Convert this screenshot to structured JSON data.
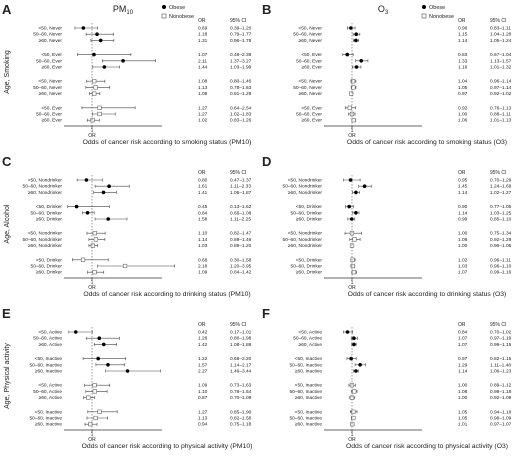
{
  "legend": {
    "obese": "Obese",
    "nonobese": "Nonobese"
  },
  "columns": {
    "or": "OR",
    "ci": "95% CI"
  },
  "chart_data": [
    {
      "panel": "A",
      "type": "forest",
      "title": "PM10",
      "title_sub": "10",
      "ylabel": "Age, Smoking",
      "xaxis_label": "OR",
      "xlabel": "Odds of cancer risk according to smoking status (PM10)",
      "xlim": [
        0,
        3.5
      ],
      "ref_line": 1,
      "show_legend": true,
      "groups": [
        {
          "rows": [
            {
              "label": "<50, Never",
              "or": "0.69",
              "ci": "0.39–1.20",
              "obese": true
            },
            {
              "label": "50–60, Never",
              "or": "1.18",
              "ci": "0.79–1.77",
              "obese": true
            },
            {
              "label": "≥60, Never",
              "or": "1.31",
              "ci": "0.96–1.78",
              "obese": true
            }
          ]
        },
        {
          "rows": [
            {
              "label": "<50, Ever",
              "or": "1.07",
              "ci": "0.48–2.39",
              "obese": true
            },
            {
              "label": "50–60, Ever",
              "or": "2.11",
              "ci": "1.37–3.27",
              "obese": true
            },
            {
              "label": "≥60, Ever",
              "or": "1.44",
              "ci": "1.03–1.99",
              "obese": true
            }
          ]
        },
        {
          "rows": [
            {
              "label": "<50, Never",
              "or": "1.08",
              "ci": "0.80–1.46",
              "obese": false
            },
            {
              "label": "50–60, Never",
              "or": "1.13",
              "ci": "0.78–1.63",
              "obese": false
            },
            {
              "label": "≥60, Never",
              "or": "1.08",
              "ci": "0.91–1.28",
              "obese": false
            }
          ]
        },
        {
          "rows": [
            {
              "label": "<50, Ever",
              "or": "1.27",
              "ci": "0.64–2.54",
              "obese": false
            },
            {
              "label": "50–60, Ever",
              "or": "1.27",
              "ci": "1.02–1.83",
              "obese": false
            },
            {
              "label": "≥60, Ever",
              "or": "1.02",
              "ci": "0.83–1.26",
              "obese": false
            }
          ]
        }
      ]
    },
    {
      "panel": "B",
      "type": "forest",
      "title": "O3",
      "title_sub": "3",
      "ylabel": "",
      "xaxis_label": "OR",
      "xlabel": "Odds of cancer risk according to smoking status (O3)",
      "xlim": [
        0,
        3.5
      ],
      "ref_line": 1,
      "show_legend": true,
      "groups": [
        {
          "rows": [
            {
              "label": "<50, Never",
              "or": "0.96",
              "ci": "0.83–1.11",
              "obese": true
            },
            {
              "label": "50–60, Never",
              "or": "1.15",
              "ci": "1.04–1.28",
              "obese": true
            },
            {
              "label": "≥60, Never",
              "or": "1.14",
              "ci": "1.05–1.24",
              "obese": true
            }
          ]
        },
        {
          "rows": [
            {
              "label": "<50, Ever",
              "or": "0.83",
              "ci": "0.67–1.04",
              "obese": true
            },
            {
              "label": "50–60, Ever",
              "or": "1.33",
              "ci": "1.13–1.57",
              "obese": true
            },
            {
              "label": "≥60, Ever",
              "or": "1.16",
              "ci": "1.01–1.32",
              "obese": true
            }
          ]
        },
        {
          "rows": [
            {
              "label": "<50, Never",
              "or": "1.04",
              "ci": "0.96–1.14",
              "obese": false
            },
            {
              "label": "50–60, Never",
              "or": "1.05",
              "ci": "0.97–1.14",
              "obese": false
            },
            {
              "label": "≥60, Never",
              "or": "0.97",
              "ci": "0.92–1.02",
              "obese": false
            }
          ]
        },
        {
          "rows": [
            {
              "label": "<50, Ever",
              "or": "0.92",
              "ci": "0.76–1.13",
              "obese": false
            },
            {
              "label": "50–60, Ever",
              "or": "1.00",
              "ci": "0.88–1.11",
              "obese": false
            },
            {
              "label": "≥60, Ever",
              "or": "1.06",
              "ci": "1.01–1.13",
              "obese": false
            }
          ]
        }
      ]
    },
    {
      "panel": "C",
      "type": "forest",
      "title": "",
      "title_sub": "",
      "ylabel": "Age, Alcohol",
      "xaxis_label": "OR",
      "xlabel": "Odds of cancer risk according to drinking status (PM10)",
      "xlim": [
        0,
        3.5
      ],
      "ref_line": 1,
      "show_legend": false,
      "groups": [
        {
          "rows": [
            {
              "label": "<50, Nondrinker",
              "or": "0.80",
              "ci": "0.47–1.37",
              "obese": true
            },
            {
              "label": "50–60, Nondrinker",
              "or": "1.61",
              "ci": "1.11–2.33",
              "obese": true
            },
            {
              "label": "≥60, Nondrinker",
              "or": "1.41",
              "ci": "1.06–1.87",
              "obese": true
            }
          ]
        },
        {
          "rows": [
            {
              "label": "<50, Drinker",
              "or": "0.45",
              "ci": "0.13–1.62",
              "obese": true
            },
            {
              "label": "50–60, Drinker",
              "or": "0.84",
              "ci": "0.66–1.08",
              "obese": true
            },
            {
              "label": "≥60, Drinker",
              "or": "1.58",
              "ci": "1.11–2.25",
              "obese": true
            }
          ]
        },
        {
          "rows": [
            {
              "label": "<50, Nondrinker",
              "or": "1.10",
              "ci": "0.82–1.47",
              "obese": false
            },
            {
              "label": "50–60, Nondrinker",
              "or": "1.14",
              "ci": "0.89–1.46",
              "obese": false
            },
            {
              "label": "≥60, Nondrinker",
              "or": "1.03",
              "ci": "0.89–1.20",
              "obese": false
            }
          ]
        },
        {
          "rows": [
            {
              "label": "<50, Drinker",
              "or": "0.68",
              "ci": "0.30–1.58",
              "obese": false
            },
            {
              "label": "50–60, Drinker",
              "or": "2.18",
              "ci": "1.20–3.95",
              "obese": false
            },
            {
              "label": "≥60, Drinker",
              "or": "1.09",
              "ci": "0.84–1.42",
              "obese": false
            }
          ]
        }
      ]
    },
    {
      "panel": "D",
      "type": "forest",
      "title": "",
      "title_sub": "",
      "ylabel": "",
      "xaxis_label": "OR",
      "xlabel": "Odds of cancer risk according to drinking status (O3)",
      "xlim": [
        0,
        3.5
      ],
      "ref_line": 1,
      "show_legend": false,
      "groups": [
        {
          "rows": [
            {
              "label": "<50, Nondrinker",
              "or": "0.95",
              "ci": "0.70–1.29",
              "obese": true
            },
            {
              "label": "50–60, Nondrinker",
              "or": "1.45",
              "ci": "1.24–1.69",
              "obese": true
            },
            {
              "label": "≥60, Nondrinker",
              "or": "1.14",
              "ci": "1.02–1.27",
              "obese": true
            }
          ]
        },
        {
          "rows": [
            {
              "label": "<50, Drinker",
              "or": "0.90",
              "ci": "0.77–1.05",
              "obese": true
            },
            {
              "label": "50–60, Drinker",
              "or": "1.14",
              "ci": "1.03–1.25",
              "obese": true
            },
            {
              "label": "≥60, Drinker",
              "or": "0.99",
              "ci": "0.85–1.10",
              "obese": true
            }
          ]
        },
        {
          "rows": [
            {
              "label": "<50, Nondrinker",
              "or": "1.00",
              "ci": "0.75–1.34",
              "obese": false
            },
            {
              "label": "50–60, Nondrinker",
              "or": "1.09",
              "ci": "0.92–1.29",
              "obese": false
            },
            {
              "label": "≥60, Nondrinker",
              "or": "1.00",
              "ci": "0.96–1.05",
              "obese": false
            }
          ]
        },
        {
          "rows": [
            {
              "label": "<50, Drinker",
              "or": "1.02",
              "ci": "0.96–1.11",
              "obese": false
            },
            {
              "label": "50–60, Drinker",
              "or": "1.03",
              "ci": "0.96–1.10",
              "obese": false
            },
            {
              "label": "≥60, Drinker",
              "or": "1.07",
              "ci": "0.99–1.16",
              "obese": false
            }
          ]
        }
      ]
    },
    {
      "panel": "E",
      "type": "forest",
      "title": "",
      "title_sub": "",
      "ylabel": "Age, Physical activity",
      "xaxis_label": "OR",
      "xlabel": "Odds of cancer risk according to physical activity (PM10)",
      "xlim": [
        0,
        3.5
      ],
      "ref_line": 1,
      "show_legend": false,
      "groups": [
        {
          "rows": [
            {
              "label": "<50, Active",
              "or": "0.42",
              "ci": "0.17–1.01",
              "obese": true
            },
            {
              "label": "50–60, Active",
              "or": "1.26",
              "ci": "0.80–1.98",
              "obese": true
            },
            {
              "label": "≥60, Active",
              "or": "1.42",
              "ci": "1.08–1.88",
              "obese": true
            }
          ]
        },
        {
          "rows": [
            {
              "label": "<50, Inactive",
              "or": "1.22",
              "ci": "0.68–2.20",
              "obese": true
            },
            {
              "label": "50–60, Inactive",
              "or": "1.57",
              "ci": "1.14–2.17",
              "obese": true
            },
            {
              "label": "≥60, Inactive",
              "or": "2.27",
              "ci": "1.49–3.44",
              "obese": true
            }
          ]
        },
        {
          "rows": [
            {
              "label": "<50, Active",
              "or": "1.09",
              "ci": "0.73–1.63",
              "obese": false
            },
            {
              "label": "50–60, Active",
              "or": "1.10",
              "ci": "0.78–1.54",
              "obese": false
            },
            {
              "label": "≥60, Active",
              "or": "0.87",
              "ci": "0.70–1.09",
              "obese": false
            }
          ]
        },
        {
          "rows": [
            {
              "label": "<50, Inactive",
              "or": "1.27",
              "ci": "0.85–1.90",
              "obese": false
            },
            {
              "label": "50–60, Inactive",
              "or": "1.13",
              "ci": "0.82–1.56",
              "obese": false
            },
            {
              "label": "≥60, Inactive",
              "or": "0.94",
              "ci": "0.75–1.18",
              "obese": false
            }
          ]
        }
      ]
    },
    {
      "panel": "F",
      "type": "forest",
      "title": "",
      "title_sub": "",
      "ylabel": "",
      "xaxis_label": "OR",
      "xlabel": "Odds of cancer risk according to physical activity (O3)",
      "xlim": [
        0,
        3.5
      ],
      "ref_line": 1,
      "show_legend": false,
      "groups": [
        {
          "rows": [
            {
              "label": "<50, Active",
              "or": "0.84",
              "ci": "0.70–1.02",
              "obese": true
            },
            {
              "label": "50–60, Active",
              "or": "1.07",
              "ci": "0.97–1.19",
              "obese": true
            },
            {
              "label": "≥60, Active",
              "or": "1.07",
              "ci": "0.99–1.15",
              "obese": true
            }
          ]
        },
        {
          "rows": [
            {
              "label": "<50, Inactive",
              "or": "0.97",
              "ci": "0.82–1.15",
              "obese": true
            },
            {
              "label": "50–60, Inactive",
              "or": "1.29",
              "ci": "1.11–1.48",
              "obese": true
            },
            {
              "label": "≥60, Inactive",
              "or": "1.14",
              "ci": "1.06–1.23",
              "obese": true
            }
          ]
        },
        {
          "rows": [
            {
              "label": "<50, Inactive",
              "or": "1.00",
              "ci": "0.89–1.12",
              "obese": false
            },
            {
              "label": "50–60, Inactive",
              "or": "1.08",
              "ci": "0.98–1.18",
              "obese": false
            },
            {
              "label": "≥60, Inactive",
              "or": "1.00",
              "ci": "0.92–1.09",
              "obese": false
            }
          ]
        },
        {
          "rows": [
            {
              "label": "<50, Inactive",
              "or": "1.05",
              "ci": "0.94–1.18",
              "obese": false
            },
            {
              "label": "50–60, Inactive",
              "or": "1.05",
              "ci": "0.98–1.09",
              "obese": false
            },
            {
              "label": "≥60, Inactive",
              "or": "1.01",
              "ci": "0.97–1.07",
              "obese": false
            }
          ]
        }
      ]
    }
  ]
}
